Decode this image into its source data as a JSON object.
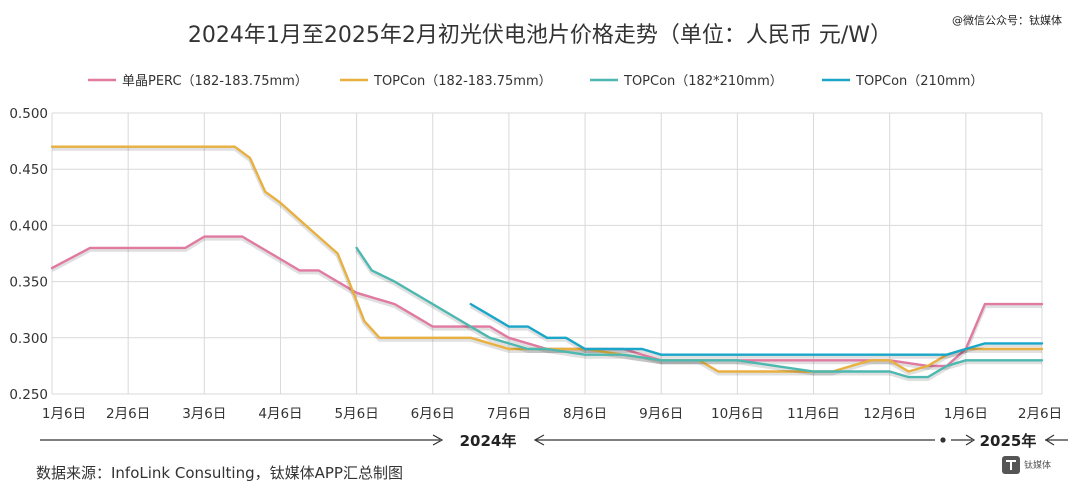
{
  "watermark": "@微信公众号：钛媒体",
  "source_note": "数据来源：InfoLink Consulting，钛媒体APP汇总制图",
  "logo_text": "钛媒体",
  "year_labels": [
    "2024年",
    "2025年"
  ],
  "chart_data": {
    "type": "line",
    "title": "2024年1月至2025年2月初光伏电池片价格走势（单位：人民币 元/W）",
    "xlabel": "",
    "ylabel": "",
    "x_ticks": [
      "1月6日",
      "2月6日",
      "3月6日",
      "4月6日",
      "5月6日",
      "6月6日",
      "7月6日",
      "8月6日",
      "9月6日",
      "10月6日",
      "11月6日",
      "12月6日",
      "1月6日",
      "2月6日"
    ],
    "ylim": [
      0.25,
      0.5
    ],
    "y_ticks": [
      "0.250",
      "0.300",
      "0.350",
      "0.400",
      "0.450",
      "0.500"
    ],
    "y_tick_values": [
      0.25,
      0.3,
      0.35,
      0.4,
      0.45,
      0.5
    ],
    "grid": true,
    "legend_position": "top",
    "series": [
      {
        "name": "单晶PERC（182-183.75mm）",
        "color": "#e07aa0",
        "points": [
          [
            0,
            0.362
          ],
          [
            0.5,
            0.38
          ],
          [
            1.0,
            0.38
          ],
          [
            1.5,
            0.38
          ],
          [
            1.75,
            0.38
          ],
          [
            2.0,
            0.39
          ],
          [
            2.5,
            0.39
          ],
          [
            2.75,
            0.38
          ],
          [
            3.0,
            0.37
          ],
          [
            3.25,
            0.36
          ],
          [
            3.5,
            0.36
          ],
          [
            3.75,
            0.35
          ],
          [
            4.0,
            0.34
          ],
          [
            4.5,
            0.33
          ],
          [
            4.75,
            0.32
          ],
          [
            5.0,
            0.31
          ],
          [
            5.5,
            0.31
          ],
          [
            5.75,
            0.31
          ],
          [
            6.0,
            0.3
          ],
          [
            6.5,
            0.29
          ],
          [
            7.0,
            0.29
          ],
          [
            7.5,
            0.29
          ],
          [
            8.0,
            0.28
          ],
          [
            8.5,
            0.28
          ],
          [
            9.0,
            0.28
          ],
          [
            9.5,
            0.28
          ],
          [
            10.0,
            0.28
          ],
          [
            10.5,
            0.28
          ],
          [
            11.0,
            0.28
          ],
          [
            11.5,
            0.275
          ],
          [
            11.75,
            0.275
          ],
          [
            12.0,
            0.29
          ],
          [
            12.25,
            0.33
          ],
          [
            12.5,
            0.33
          ],
          [
            13.0,
            0.33
          ]
        ]
      },
      {
        "name": "TOPCon（182-183.75mm）",
        "color": "#e8b040",
        "points": [
          [
            0,
            0.47
          ],
          [
            1.0,
            0.47
          ],
          [
            2.0,
            0.47
          ],
          [
            2.4,
            0.47
          ],
          [
            2.6,
            0.46
          ],
          [
            2.8,
            0.43
          ],
          [
            3.0,
            0.42
          ],
          [
            3.25,
            0.405
          ],
          [
            3.5,
            0.39
          ],
          [
            3.75,
            0.375
          ],
          [
            3.9,
            0.35
          ],
          [
            4.1,
            0.315
          ],
          [
            4.3,
            0.3
          ],
          [
            4.6,
            0.3
          ],
          [
            5.0,
            0.3
          ],
          [
            5.5,
            0.3
          ],
          [
            6.0,
            0.29
          ],
          [
            6.5,
            0.29
          ],
          [
            7.0,
            0.29
          ],
          [
            7.5,
            0.285
          ],
          [
            8.0,
            0.28
          ],
          [
            8.5,
            0.28
          ],
          [
            8.75,
            0.27
          ],
          [
            9.0,
            0.27
          ],
          [
            9.5,
            0.27
          ],
          [
            10.0,
            0.27
          ],
          [
            10.25,
            0.27
          ],
          [
            10.5,
            0.275
          ],
          [
            10.75,
            0.28
          ],
          [
            11.0,
            0.28
          ],
          [
            11.25,
            0.27
          ],
          [
            11.5,
            0.275
          ],
          [
            11.75,
            0.285
          ],
          [
            12.0,
            0.29
          ],
          [
            12.5,
            0.29
          ],
          [
            13.0,
            0.29
          ]
        ]
      },
      {
        "name": "TOPCon（182*210mm）",
        "color": "#4db8b0",
        "points": [
          [
            4.0,
            0.38
          ],
          [
            4.2,
            0.36
          ],
          [
            4.5,
            0.35
          ],
          [
            5.0,
            0.33
          ],
          [
            5.5,
            0.31
          ],
          [
            5.75,
            0.3
          ],
          [
            6.0,
            0.295
          ],
          [
            6.25,
            0.29
          ],
          [
            6.5,
            0.29
          ],
          [
            7.0,
            0.285
          ],
          [
            7.5,
            0.285
          ],
          [
            8.0,
            0.28
          ],
          [
            8.5,
            0.28
          ],
          [
            9.0,
            0.28
          ],
          [
            9.5,
            0.275
          ],
          [
            10.0,
            0.27
          ],
          [
            10.5,
            0.27
          ],
          [
            11.0,
            0.27
          ],
          [
            11.25,
            0.265
          ],
          [
            11.5,
            0.265
          ],
          [
            11.75,
            0.275
          ],
          [
            12.0,
            0.28
          ],
          [
            12.5,
            0.28
          ],
          [
            13.0,
            0.28
          ]
        ]
      },
      {
        "name": "TOPCon（210mm）",
        "color": "#1aa6c8",
        "points": [
          [
            5.5,
            0.33
          ],
          [
            5.75,
            0.32
          ],
          [
            6.0,
            0.31
          ],
          [
            6.25,
            0.31
          ],
          [
            6.5,
            0.3
          ],
          [
            6.75,
            0.3
          ],
          [
            7.0,
            0.29
          ],
          [
            7.5,
            0.29
          ],
          [
            7.75,
            0.29
          ],
          [
            8.0,
            0.285
          ],
          [
            8.5,
            0.285
          ],
          [
            9.0,
            0.285
          ],
          [
            9.5,
            0.285
          ],
          [
            10.0,
            0.285
          ],
          [
            10.5,
            0.285
          ],
          [
            11.0,
            0.285
          ],
          [
            11.5,
            0.285
          ],
          [
            11.75,
            0.285
          ],
          [
            12.0,
            0.29
          ],
          [
            12.25,
            0.295
          ],
          [
            12.5,
            0.295
          ],
          [
            13.0,
            0.295
          ]
        ]
      }
    ]
  }
}
